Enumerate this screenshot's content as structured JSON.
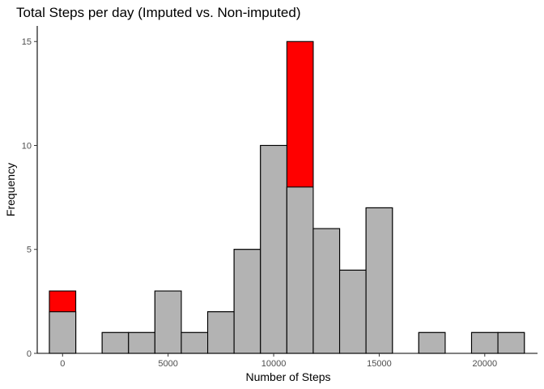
{
  "chart_data": {
    "type": "bar",
    "title": "Total Steps per day (Imputed vs. Non-imputed)",
    "xlabel": "Number of Steps",
    "ylabel": "Frequency",
    "xlim": [
      -1200,
      22500
    ],
    "ylim": [
      0,
      15.75
    ],
    "xticks": [
      0,
      5000,
      10000,
      15000,
      20000
    ],
    "yticks": [
      0,
      5,
      10,
      15
    ],
    "xtick_labels": [
      "0",
      "5000",
      "10000",
      "15000",
      "20000"
    ],
    "ytick_labels": [
      "0",
      "5",
      "10",
      "15"
    ],
    "bin_width": 1250,
    "bin_centers": [
      0,
      1250,
      2500,
      3750,
      5000,
      6250,
      7500,
      8750,
      10000,
      11250,
      12500,
      13750,
      15000,
      16250,
      17500,
      18750,
      20000,
      21250
    ],
    "series": [
      {
        "name": "",
        "color": "#ff0000",
        "values": [
          3,
          0,
          1,
          1,
          3,
          1,
          2,
          5,
          10,
          15,
          6,
          4,
          7,
          0,
          1,
          0,
          1,
          1
        ]
      },
      {
        "name": "",
        "color": "#b3b3b3",
        "values": [
          2,
          0,
          1,
          1,
          3,
          1,
          2,
          5,
          10,
          8,
          6,
          4,
          7,
          0,
          1,
          0,
          1,
          1
        ]
      }
    ],
    "grid": false,
    "legend": "none"
  }
}
